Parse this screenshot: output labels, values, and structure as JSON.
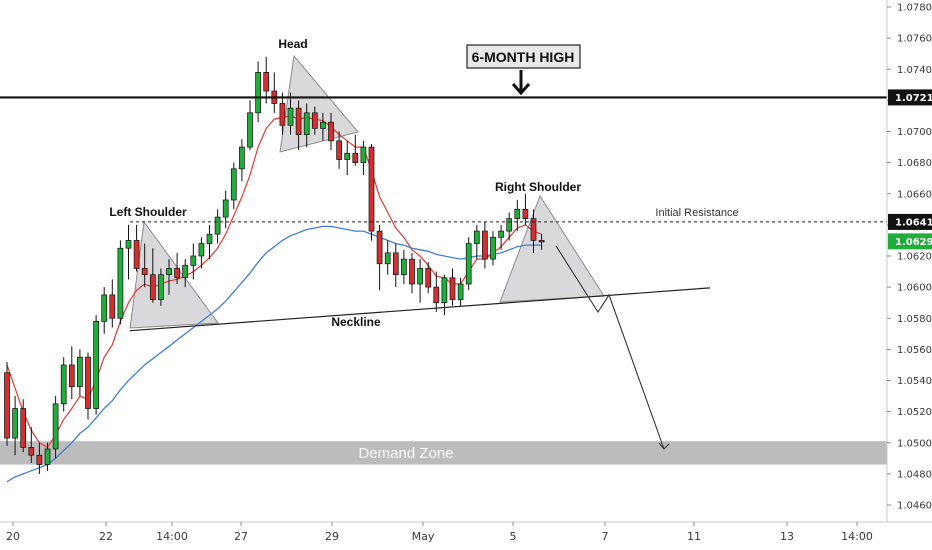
{
  "chart_data": {
    "type": "candlestick",
    "title": "",
    "xlabel": "",
    "ylabel": "",
    "ylim": [
      1.0445,
      1.0792
    ],
    "grid": false,
    "y_ticks": [
      "1.07800",
      "1.07600",
      "1.07400",
      "1.07200",
      "1.07000",
      "1.06800",
      "1.06600",
      "1.06400",
      "1.06200",
      "1.06000",
      "1.05800",
      "1.05600",
      "1.05400",
      "1.05200",
      "1.05000",
      "1.04800",
      "1.04600"
    ],
    "x_ticks": [
      "20",
      "22",
      "14:00",
      "27",
      "29",
      "May",
      "5",
      "7",
      "11",
      "13",
      "14:00"
    ],
    "candles": [
      [
        1.0545,
        1.0552,
        1.0498,
        1.0503
      ],
      [
        1.0503,
        1.053,
        1.0492,
        1.0522
      ],
      [
        1.0522,
        1.0528,
        1.0494,
        1.0497
      ],
      [
        1.0497,
        1.051,
        1.0487,
        1.0492
      ],
      [
        1.0492,
        1.05,
        1.048,
        1.0486
      ],
      [
        1.0486,
        1.05,
        1.0482,
        1.0496
      ],
      [
        1.0496,
        1.053,
        1.049,
        1.0525
      ],
      [
        1.0525,
        1.0555,
        1.052,
        1.055
      ],
      [
        1.055,
        1.0562,
        1.0528,
        1.0536
      ],
      [
        1.0536,
        1.056,
        1.053,
        1.0555
      ],
      [
        1.0555,
        1.0558,
        1.0515,
        1.0522
      ],
      [
        1.0522,
        1.0582,
        1.0518,
        1.0578
      ],
      [
        1.0578,
        1.06,
        1.057,
        1.0595
      ],
      [
        1.0595,
        1.0605,
        1.0574,
        1.058
      ],
      [
        1.058,
        1.063,
        1.0576,
        1.0625
      ],
      [
        1.0625,
        1.064,
        1.0605,
        1.063
      ],
      [
        1.063,
        1.064,
        1.061,
        1.0612
      ],
      [
        1.0612,
        1.0628,
        1.06,
        1.0608
      ],
      [
        1.0608,
        1.0625,
        1.059,
        1.0592
      ],
      [
        1.0592,
        1.0612,
        1.0588,
        1.0608
      ],
      [
        1.0608,
        1.0618,
        1.0595,
        1.0612
      ],
      [
        1.0612,
        1.0622,
        1.0602,
        1.0606
      ],
      [
        1.0606,
        1.0618,
        1.06,
        1.0614
      ],
      [
        1.0614,
        1.0628,
        1.0605,
        1.062
      ],
      [
        1.062,
        1.0632,
        1.0612,
        1.0628
      ],
      [
        1.0628,
        1.064,
        1.0618,
        1.0634
      ],
      [
        1.0634,
        1.065,
        1.0628,
        1.0645
      ],
      [
        1.0645,
        1.0662,
        1.0638,
        1.0656
      ],
      [
        1.0656,
        1.068,
        1.065,
        1.0676
      ],
      [
        1.0676,
        1.0695,
        1.0668,
        1.069
      ],
      [
        1.069,
        1.072,
        1.0688,
        1.0712
      ],
      [
        1.0712,
        1.0745,
        1.0706,
        1.0738
      ],
      [
        1.0738,
        1.0748,
        1.0718,
        1.0726
      ],
      [
        1.0726,
        1.0738,
        1.0712,
        1.0718
      ],
      [
        1.0718,
        1.0725,
        1.0698,
        1.0704
      ],
      [
        1.0704,
        1.0725,
        1.0698,
        1.0715
      ],
      [
        1.0715,
        1.072,
        1.0688,
        1.0698
      ],
      [
        1.0698,
        1.0718,
        1.069,
        1.0712
      ],
      [
        1.0712,
        1.0716,
        1.0698,
        1.0702
      ],
      [
        1.0702,
        1.0712,
        1.0694,
        1.0706
      ],
      [
        1.0706,
        1.0712,
        1.0688,
        1.0694
      ],
      [
        1.0694,
        1.07,
        1.0676,
        1.0682
      ],
      [
        1.0682,
        1.0694,
        1.0672,
        1.0686
      ],
      [
        1.0686,
        1.0698,
        1.0678,
        1.068
      ],
      [
        1.068,
        1.0694,
        1.0672,
        1.069
      ],
      [
        1.069,
        1.0692,
        1.063,
        1.0636
      ],
      [
        1.0636,
        1.064,
        1.0598,
        1.0615
      ],
      [
        1.0615,
        1.063,
        1.0608,
        1.0622
      ],
      [
        1.0622,
        1.0628,
        1.06,
        1.0608
      ],
      [
        1.0608,
        1.0624,
        1.0602,
        1.0618
      ],
      [
        1.0618,
        1.0622,
        1.0596,
        1.0602
      ],
      [
        1.0602,
        1.0618,
        1.059,
        1.0612
      ],
      [
        1.0612,
        1.0616,
        1.0596,
        1.06
      ],
      [
        1.06,
        1.061,
        1.0584,
        1.059
      ],
      [
        1.059,
        1.0608,
        1.0582,
        1.0606
      ],
      [
        1.0606,
        1.0612,
        1.0588,
        1.0592
      ],
      [
        1.0592,
        1.0606,
        1.0588,
        1.0602
      ],
      [
        1.0602,
        1.0632,
        1.0598,
        1.0628
      ],
      [
        1.0628,
        1.064,
        1.0618,
        1.0636
      ],
      [
        1.0636,
        1.0642,
        1.0612,
        1.0618
      ],
      [
        1.0618,
        1.0636,
        1.0614,
        1.0632
      ],
      [
        1.0632,
        1.064,
        1.0624,
        1.0636
      ],
      [
        1.0636,
        1.0648,
        1.063,
        1.0644
      ],
      [
        1.0644,
        1.0656,
        1.0636,
        1.065
      ],
      [
        1.065,
        1.066,
        1.064,
        1.0644
      ],
      [
        1.0644,
        1.065,
        1.0622,
        1.063
      ],
      [
        1.063,
        1.0634,
        1.0624,
        1.0629
      ]
    ],
    "ema_fast": [
      1.055,
      1.0535,
      1.052,
      1.0508,
      1.05,
      1.0497,
      1.0505,
      1.0515,
      1.0522,
      1.053,
      1.0528,
      1.054,
      1.0555,
      1.0563,
      1.0578,
      1.059,
      1.0598,
      1.0602,
      1.06,
      1.0602,
      1.0604,
      1.0605,
      1.0607,
      1.061,
      1.0614,
      1.0619,
      1.0625,
      1.0634,
      1.0646,
      1.0658,
      1.0672,
      1.069,
      1.0702,
      1.0708,
      1.0709,
      1.071,
      1.0708,
      1.0709,
      1.0708,
      1.0707,
      1.0703,
      1.0698,
      1.0694,
      1.069,
      1.069,
      1.0675,
      1.0658,
      1.0648,
      1.0638,
      1.0632,
      1.0624,
      1.062,
      1.0614,
      1.0607,
      1.0606,
      1.0602,
      1.0602,
      1.061,
      1.0618,
      1.0618,
      1.0622,
      1.0626,
      1.0632,
      1.0638,
      1.064,
      1.0636,
      1.0634
    ],
    "ema_slow": [
      1.0475,
      1.0478,
      1.048,
      1.0482,
      1.0484,
      1.0486,
      1.049,
      1.0495,
      1.05,
      1.0506,
      1.051,
      1.0516,
      1.0522,
      1.0527,
      1.0534,
      1.054,
      1.0545,
      1.055,
      1.0554,
      1.0558,
      1.0562,
      1.0566,
      1.057,
      1.0574,
      1.0578,
      1.0582,
      1.0586,
      1.0591,
      1.0597,
      1.0603,
      1.0609,
      1.0616,
      1.0622,
      1.0626,
      1.063,
      1.0633,
      1.0635,
      1.0637,
      1.0638,
      1.0639,
      1.0639,
      1.0638,
      1.0637,
      1.0636,
      1.0636,
      1.0634,
      1.0632,
      1.063,
      1.0628,
      1.0627,
      1.0625,
      1.0624,
      1.0623,
      1.0621,
      1.062,
      1.0619,
      1.0618,
      1.0619,
      1.062,
      1.062,
      1.0621,
      1.0622,
      1.0624,
      1.0626,
      1.0627,
      1.0627,
      1.0627
    ],
    "colors": {
      "up": "#26a69a",
      "upFill": "#1fae3a",
      "down": "#d32f2f",
      "wick": "#111111",
      "ema_fast": "#e53935",
      "ema_slow": "#3f7fd6",
      "zone": "#b8b8b8",
      "triangle": "#c9c9cc"
    },
    "levels": {
      "six_month_high": {
        "value": 1.07219,
        "label": "1.07219"
      },
      "initial_resistance": {
        "value": 1.06419,
        "label": "1.06419"
      },
      "last_price": {
        "value": 1.06294,
        "label": "1.06294"
      }
    },
    "demand_zone": {
      "from": 1.0486,
      "to": 1.0501,
      "label": "Demand Zone"
    },
    "annotations": {
      "head": "Head",
      "left_shoulder": "Left Shoulder",
      "right_shoulder": "Right Shoulder",
      "neckline": "Neckline",
      "initial_resistance": "Initial Resistance",
      "six_month_high": "6-MONTH HIGH"
    },
    "neckline": {
      "from": 1.0572,
      "to": 1.05995
    },
    "projection": [
      1.0595,
      1.0584,
      1.0496
    ]
  }
}
